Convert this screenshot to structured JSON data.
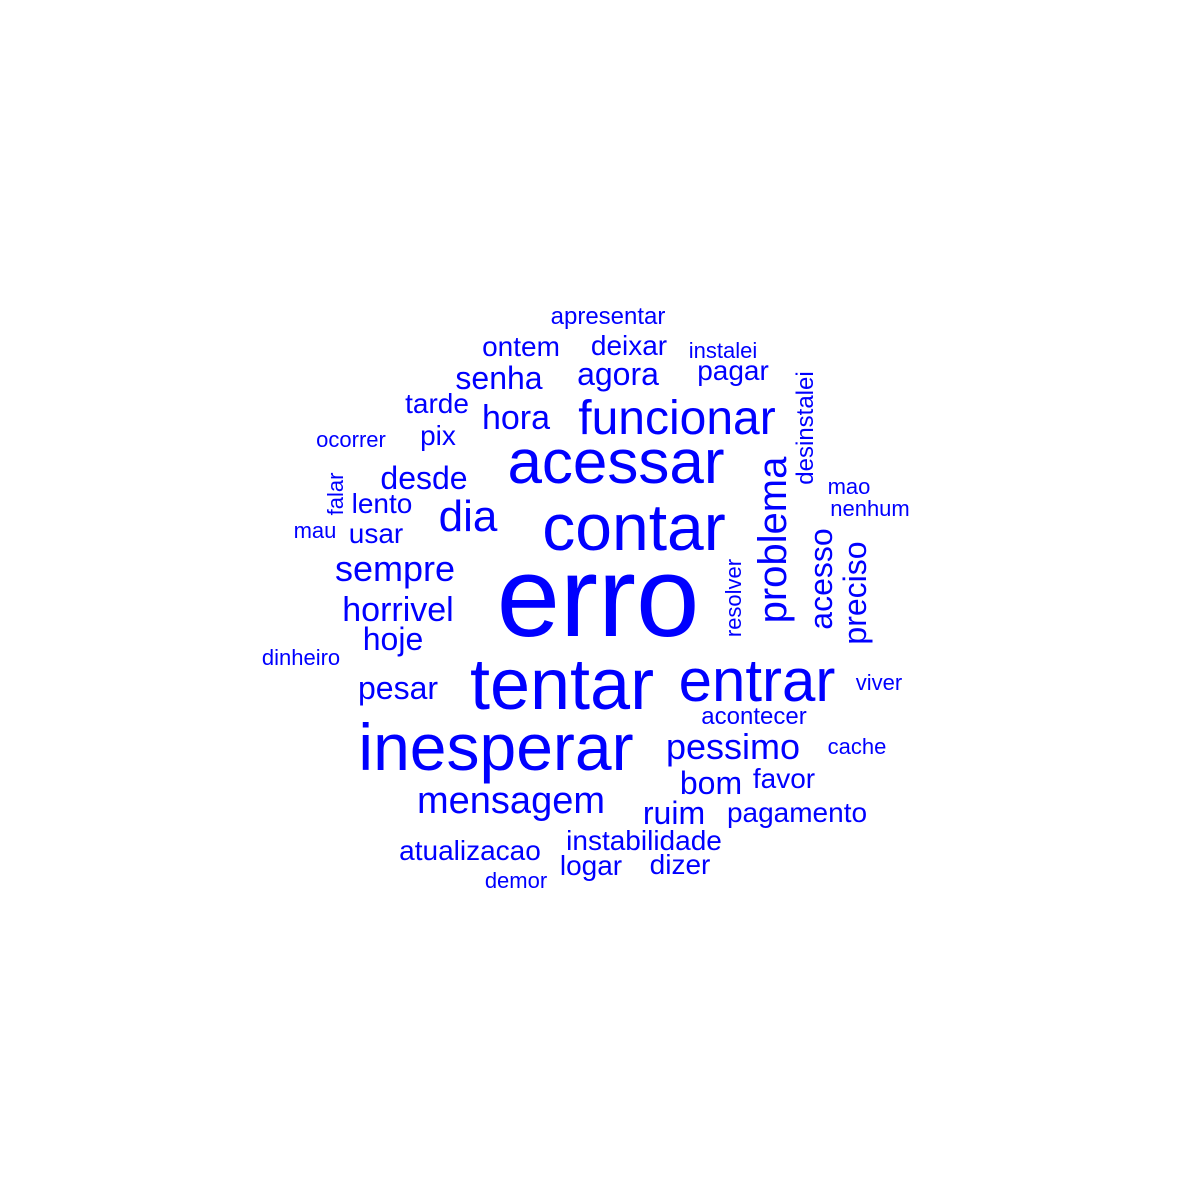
{
  "color": "#0000ff",
  "words": [
    "erro",
    "tentar",
    "inesperar",
    "contar",
    "acessar",
    "entrar",
    "funcionar",
    "problema",
    "mensagem",
    "dia",
    "pessimo",
    "sempre",
    "horrivel",
    "hora",
    "acesso",
    "preciso",
    "senha",
    "agora",
    "hoje",
    "desde",
    "pesar",
    "ruim",
    "bom",
    "atualizacao",
    "instabilidade",
    "logar",
    "pagamento",
    "pagar",
    "deixar",
    "ontem",
    "tarde",
    "pix",
    "lento",
    "usar",
    "dizer",
    "favor",
    "acontecer",
    "apresentar",
    "desinstalei",
    "resolver",
    "instalei",
    "ocorrer",
    "falar",
    "mau",
    "mao",
    "nenhum",
    "dinheiro",
    "viver",
    "cache",
    "demor"
  ]
}
